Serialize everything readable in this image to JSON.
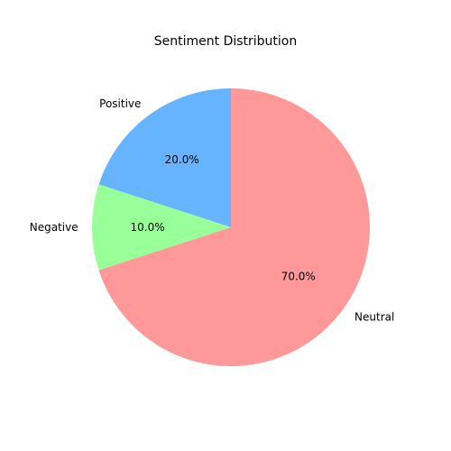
{
  "chart_data": {
    "type": "pie",
    "title": "Sentiment Distribution",
    "slices": [
      {
        "label": "Positive",
        "value": 20.0,
        "pct_label": "20.0%",
        "color": "#66b3ff"
      },
      {
        "label": "Negative",
        "value": 10.0,
        "pct_label": "10.0%",
        "color": "#99ff99"
      },
      {
        "label": "Neutral",
        "value": 70.0,
        "pct_label": "70.0%",
        "color": "#ff9999"
      }
    ],
    "start_angle_deg": 90,
    "direction": "counterclockwise",
    "legend": "none"
  }
}
